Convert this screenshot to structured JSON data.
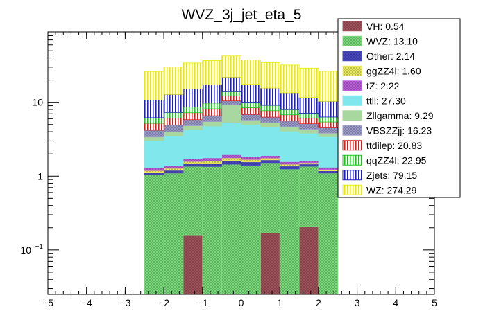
{
  "chart_data": {
    "type": "bar",
    "stacked": true,
    "title": "WVZ_3j_jet_eta_5",
    "xlabel": "",
    "ylabel": "",
    "xlim": [
      -5,
      5
    ],
    "ylim": [
      0.025,
      90
    ],
    "yscale": "log",
    "grid": false,
    "legend_position": "top-right",
    "x_ticks": [
      -5,
      -4,
      -3,
      -2,
      -1,
      0,
      1,
      2,
      3,
      4,
      5
    ],
    "x_tick_labels": [
      "−5",
      "−4",
      "−3",
      "−2",
      "−1",
      "0",
      "1",
      "2",
      "3",
      "4",
      "5"
    ],
    "y_tick_labels": [
      {
        "value": 10,
        "label": "10"
      },
      {
        "value": 1,
        "label": "1"
      },
      {
        "value": 0.1,
        "label": "10",
        "exponent": "−1"
      }
    ],
    "bins": [
      [
        -2.5,
        -2.0
      ],
      [
        -2.0,
        -1.5
      ],
      [
        -1.5,
        -1.0
      ],
      [
        -1.0,
        -0.5
      ],
      [
        -0.5,
        0.0
      ],
      [
        0.0,
        0.5
      ],
      [
        0.5,
        1.0
      ],
      [
        1.0,
        1.5
      ],
      [
        1.5,
        2.0
      ],
      [
        2.0,
        2.5
      ]
    ],
    "series": [
      {
        "name": "VH: 0.54",
        "color": "#a5555d",
        "pattern": "cross",
        "values": [
          0,
          0,
          0.16,
          0,
          0,
          0,
          0.17,
          0,
          0.21,
          0
        ]
      },
      {
        "name": "WVZ: 13.10",
        "color": "#7be07b",
        "pattern": "cross",
        "values": [
          1.05,
          1.1,
          1.2,
          1.35,
          1.45,
          1.4,
          1.35,
          1.25,
          1.15,
          1.1
        ]
      },
      {
        "name": "Other: 2.14",
        "color": "#4a4ac8",
        "pattern": "cross",
        "values": [
          0.08,
          0.1,
          0.12,
          0.14,
          0.18,
          0.16,
          0.14,
          0.12,
          0.1,
          0.08
        ]
      },
      {
        "name": "ggZZ4l: 1.60",
        "color": "#f0f060",
        "pattern": "cross",
        "values": [
          0.06,
          0.08,
          0.1,
          0.12,
          0.14,
          0.12,
          0.1,
          0.08,
          0.06,
          0.05
        ]
      },
      {
        "name": "tZ: 2.22",
        "color": "#c060e0",
        "pattern": "cross",
        "values": [
          0.1,
          0.12,
          0.14,
          0.16,
          0.18,
          0.16,
          0.14,
          0.12,
          0.1,
          0.09
        ]
      },
      {
        "name": "ttll: 27.30",
        "color": "#80e8ec",
        "pattern": "solid",
        "values": [
          1.7,
          2.1,
          2.5,
          3.0,
          3.3,
          3.2,
          2.8,
          2.5,
          2.2,
          2.1
        ]
      },
      {
        "name": "Zllgamma: 9.29",
        "color": "#a8d8a0",
        "pattern": "solid",
        "values": [
          0.4,
          0.5,
          0.6,
          0.7,
          4.0,
          0.7,
          0.6,
          0.6,
          0.5,
          0.4
        ]
      },
      {
        "name": "VBSZZjj: 16.23",
        "color": "#a0a0d0",
        "pattern": "cross",
        "values": [
          0.8,
          0.9,
          1.0,
          1.1,
          1.2,
          1.1,
          1.0,
          0.9,
          0.8,
          0.7
        ]
      },
      {
        "name": "ttdilep: 20.83",
        "color": "#d02020",
        "pattern": "vlines",
        "values": [
          1.0,
          1.2,
          1.4,
          1.6,
          1.8,
          1.6,
          1.4,
          1.2,
          1.0,
          0.9
        ]
      },
      {
        "name": "qqZZ4l: 22.95",
        "color": "#20c020",
        "pattern": "vlines",
        "values": [
          1.0,
          1.2,
          1.4,
          1.6,
          1.7,
          1.6,
          1.4,
          1.2,
          1.0,
          0.9
        ]
      },
      {
        "name": "Zjets: 79.15",
        "color": "#2020c0",
        "pattern": "vlines",
        "values": [
          4.5,
          5.5,
          6.5,
          7.5,
          8.0,
          7.5,
          6.5,
          5.5,
          4.5,
          4.0
        ]
      },
      {
        "name": "WZ: 274.29",
        "color": "#e8e810",
        "pattern": "vlines",
        "values": [
          15.5,
          17.5,
          19.0,
          19.5,
          20.5,
          20.0,
          19.0,
          18.5,
          17.5,
          16.0
        ]
      }
    ]
  }
}
